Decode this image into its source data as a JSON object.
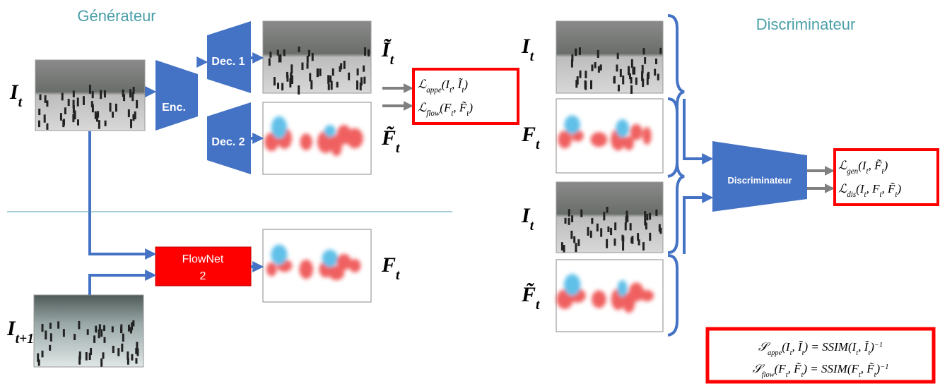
{
  "generator": {
    "title": "Générateur",
    "encoder": "Enc.",
    "decoder_1": "Dec. 1",
    "decoder_2": "Dec. 2",
    "flownet": [
      "FlowNet",
      "2"
    ],
    "input_label": [
      {
        "text": "I"
      },
      {
        "text": "t",
        "sub": true
      }
    ],
    "next_input_label": [
      {
        "text": "I"
      },
      {
        "text": "t+1",
        "sub": true
      }
    ],
    "recon_label": [
      {
        "text": "Ĩ"
      },
      {
        "text": "t",
        "sub": true
      }
    ],
    "pred_flow_label": [
      {
        "text": "F̃"
      },
      {
        "text": "t",
        "sub": true
      }
    ],
    "flow_label": [
      {
        "text": "F"
      },
      {
        "text": "t",
        "sub": true
      }
    ],
    "losses": [
      [
        {
          "text": "ℒ"
        },
        {
          "text": "appe",
          "sub": true
        },
        {
          "text": "(I"
        },
        {
          "text": "t",
          "sub": true
        },
        {
          "text": ", Ĩ"
        },
        {
          "text": "t",
          "sub": true
        },
        {
          "text": ")"
        }
      ],
      [
        {
          "text": "ℒ"
        },
        {
          "text": "flow",
          "sub": true
        },
        {
          "text": "(F"
        },
        {
          "text": "t",
          "sub": true
        },
        {
          "text": ", F̃"
        },
        {
          "text": "t",
          "sub": true
        },
        {
          "text": ")"
        }
      ]
    ]
  },
  "discriminator": {
    "title": "Discriminateur",
    "block": "Discriminateur",
    "labels": [
      [
        {
          "text": "I"
        },
        {
          "text": "t",
          "sub": true
        }
      ],
      [
        {
          "text": "F"
        },
        {
          "text": "t",
          "sub": true
        }
      ],
      [
        {
          "text": "I"
        },
        {
          "text": "t",
          "sub": true
        }
      ],
      [
        {
          "text": "F̃"
        },
        {
          "text": "t",
          "sub": true
        }
      ]
    ],
    "losses": [
      [
        {
          "text": "ℒ"
        },
        {
          "text": "gen",
          "sub": true
        },
        {
          "text": "(I"
        },
        {
          "text": "t",
          "sub": true
        },
        {
          "text": ", F̃"
        },
        {
          "text": "t",
          "sub": true
        },
        {
          "text": ")"
        }
      ],
      [
        {
          "text": "ℒ"
        },
        {
          "text": "dis",
          "sub": true
        },
        {
          "text": "(I"
        },
        {
          "text": "t",
          "sub": true
        },
        {
          "text": ", F"
        },
        {
          "text": "t",
          "sub": true
        },
        {
          "text": ", F̃"
        },
        {
          "text": "t",
          "sub": true
        },
        {
          "text": ")"
        }
      ]
    ]
  },
  "scores": [
    [
      {
        "text": "𝒮"
      },
      {
        "text": "appe",
        "sub": true
      },
      {
        "text": "(I"
      },
      {
        "text": "t",
        "sub": true
      },
      {
        "text": ", Ĩ"
      },
      {
        "text": "t",
        "sub": true
      },
      {
        "text": ") = SSIM(I"
      },
      {
        "text": "t",
        "sub": true
      },
      {
        "text": ", Ĩ"
      },
      {
        "text": "t",
        "sub": true
      },
      {
        "text": ")"
      },
      {
        "text": "−1",
        "sup": true
      }
    ],
    [
      {
        "text": "𝒮"
      },
      {
        "text": "flow",
        "sub": true
      },
      {
        "text": "(F"
      },
      {
        "text": "t",
        "sub": true
      },
      {
        "text": ", F̃"
      },
      {
        "text": "t",
        "sub": true
      },
      {
        "text": ") = SSIM(F"
      },
      {
        "text": "t",
        "sub": true
      },
      {
        "text": ", F̃"
      },
      {
        "text": "t",
        "sub": true
      },
      {
        "text": ")"
      },
      {
        "text": "−1",
        "sup": true
      }
    ]
  ]
}
